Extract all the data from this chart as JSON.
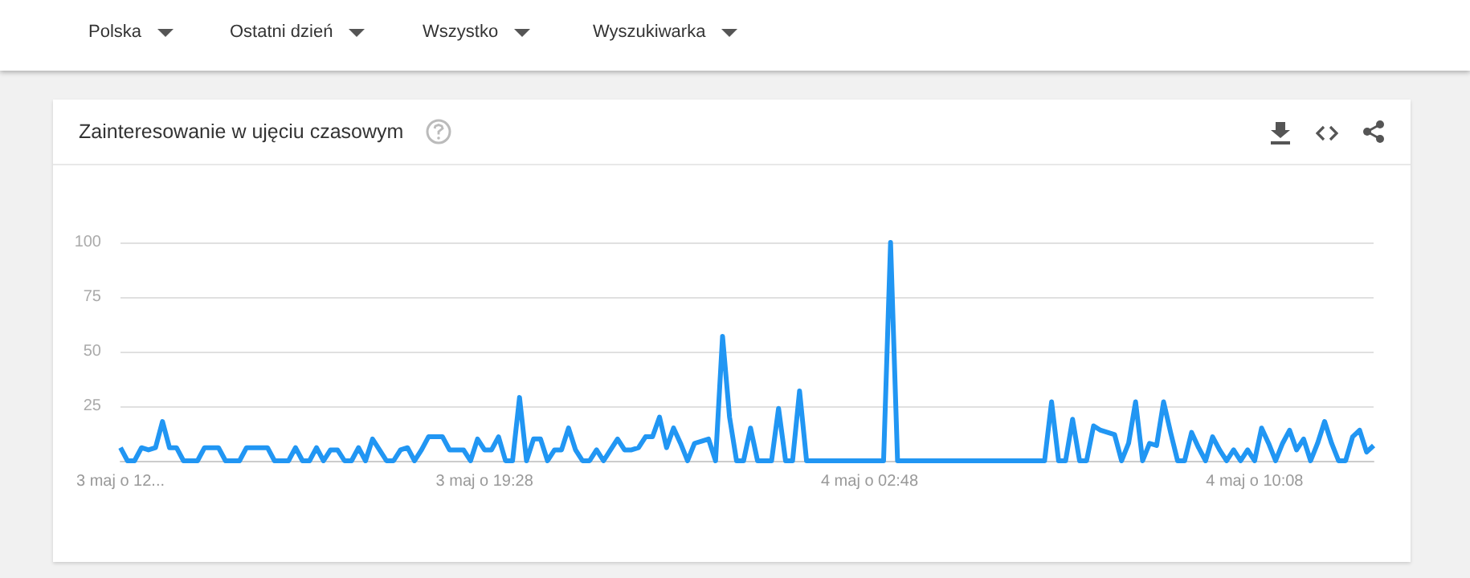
{
  "chart_data": {
    "type": "line",
    "title": "Zainteresowanie w ujęciu czasowym",
    "annotations": [
      "Polska",
      "Ostatni dzień",
      "Wszystko",
      "Wyszukiwarka"
    ],
    "categories": [
      "3 maj o 12...",
      null,
      null,
      null,
      null,
      null,
      null,
      null,
      null,
      null,
      null,
      null,
      null,
      null,
      null,
      null,
      null,
      null,
      null,
      null,
      null,
      null,
      null,
      null,
      null,
      null,
      null,
      null,
      null,
      null,
      null,
      null,
      null,
      null,
      null,
      null,
      null,
      null,
      null,
      null,
      null,
      null,
      null,
      null,
      null,
      null,
      null,
      null,
      null,
      null,
      null,
      null,
      "3 maj o 19:28",
      null,
      null,
      null,
      null,
      null,
      null,
      null,
      null,
      null,
      null,
      null,
      null,
      null,
      null,
      null,
      null,
      null,
      null,
      null,
      null,
      null,
      null,
      null,
      null,
      null,
      null,
      null,
      null,
      null,
      null,
      null,
      null,
      null,
      null,
      null,
      null,
      null,
      null,
      null,
      null,
      null,
      null,
      null,
      null,
      null,
      null,
      null,
      null,
      null,
      null,
      null,
      null,
      null,
      null,
      "4 maj o 02:48",
      null,
      null,
      null,
      null,
      null,
      null,
      null,
      null,
      null,
      null,
      null,
      null,
      null,
      null,
      null,
      null,
      null,
      null,
      null,
      null,
      null,
      null,
      null,
      null,
      null,
      null,
      null,
      null,
      null,
      null,
      null,
      null,
      null,
      null,
      null,
      null,
      null,
      null,
      null,
      null,
      null,
      null,
      null,
      null,
      null,
      null,
      null,
      null,
      null,
      null,
      null,
      null,
      null,
      null,
      "4 maj o 10:08",
      null,
      null,
      null,
      null,
      null,
      null,
      null,
      null,
      null,
      null,
      null,
      null,
      null,
      null,
      null,
      null,
      null
    ],
    "series": [
      {
        "color": "#2196f3",
        "values": [
          6,
          0,
          0,
          6,
          5,
          6,
          18,
          6,
          6,
          0,
          0,
          0,
          6,
          6,
          6,
          0,
          0,
          0,
          6,
          6,
          6,
          6,
          0,
          0,
          0,
          6,
          0,
          0,
          6,
          0,
          5,
          5,
          0,
          0,
          6,
          0,
          10,
          5,
          0,
          0,
          5,
          6,
          0,
          5,
          11,
          11,
          11,
          5,
          5,
          5,
          0,
          10,
          5,
          5,
          11,
          0,
          0,
          29,
          0,
          10,
          10,
          0,
          5,
          5,
          15,
          5,
          0,
          0,
          5,
          0,
          5,
          10,
          5,
          5,
          6,
          11,
          11,
          20,
          6,
          15,
          8,
          0,
          8,
          9,
          10,
          0,
          57,
          20,
          0,
          0,
          15,
          0,
          0,
          0,
          24,
          0,
          0,
          32,
          0,
          0,
          0,
          0,
          0,
          0,
          0,
          0,
          0,
          0,
          0,
          0,
          100,
          0,
          0,
          0,
          0,
          0,
          0,
          0,
          0,
          0,
          0,
          0,
          0,
          0,
          0,
          0,
          0,
          0,
          0,
          0,
          0,
          0,
          0,
          27,
          0,
          0,
          19,
          0,
          0,
          16,
          14,
          13,
          12,
          0,
          8,
          27,
          0,
          8,
          7,
          27,
          13,
          0,
          0,
          13,
          6,
          0,
          11,
          5,
          0,
          5,
          0,
          5,
          0,
          15,
          8,
          0,
          8,
          14,
          5,
          10,
          0,
          8,
          18,
          8,
          0,
          0,
          11,
          14,
          4,
          7
        ]
      }
    ],
    "ylim": [
      0,
      100
    ],
    "yticks": [
      {
        "value": 0,
        "label": null
      },
      25,
      50,
      75,
      100
    ],
    "grid": "y",
    "marker": "none",
    "line_style": "solid"
  }
}
